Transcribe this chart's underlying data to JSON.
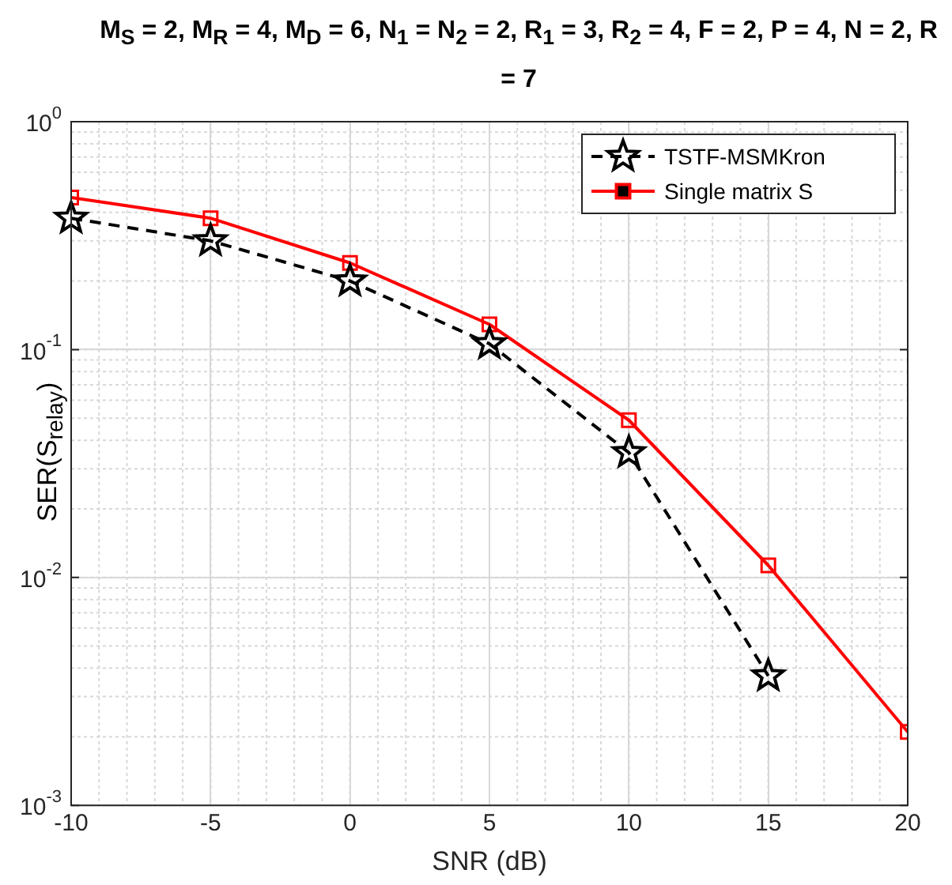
{
  "chart_data": {
    "type": "line",
    "title": "M$_{S}$ = 2, M$_{R}$ = 4, M$_{D}$ = 6, N$_{1}$ = N$_{2}$ = 2, R$_{1}$ = 3, R$_{2}$ = 4, F = 2, P = 4, N = 2, R = 7",
    "xlabel": "SNR (dB)",
    "ylabel": "SER(S$_{relay}$)",
    "x": [
      -10,
      -5,
      0,
      5,
      10,
      15,
      20
    ],
    "series": [
      {
        "name": "TSTF-MSMKron",
        "color": "#000000",
        "marker": "star",
        "line_style": "dashed",
        "values": [
          0.377,
          0.3,
          0.2,
          0.106,
          0.0353,
          0.0037,
          null
        ]
      },
      {
        "name": "Single matrix S",
        "color": "#ff0000",
        "marker": "square",
        "line_style": "solid",
        "values": [
          0.465,
          0.377,
          0.24,
          0.129,
          0.049,
          0.0113,
          0.0021
        ]
      }
    ],
    "log": "y",
    "xlim": [
      -10,
      20
    ],
    "xticks": [
      -10,
      -5,
      0,
      5,
      10,
      15,
      20
    ],
    "ylim": [
      0.001,
      1
    ],
    "yticks": [
      {
        "value": 1,
        "label": "10$^{0}$"
      },
      {
        "value": 0.1,
        "label": "10$^{-1}$"
      },
      {
        "value": 0.01,
        "label": "10$^{-2}$"
      },
      {
        "value": 0.001,
        "label": "10$^{-3}$"
      }
    ],
    "grid": true,
    "legend": "top right"
  }
}
